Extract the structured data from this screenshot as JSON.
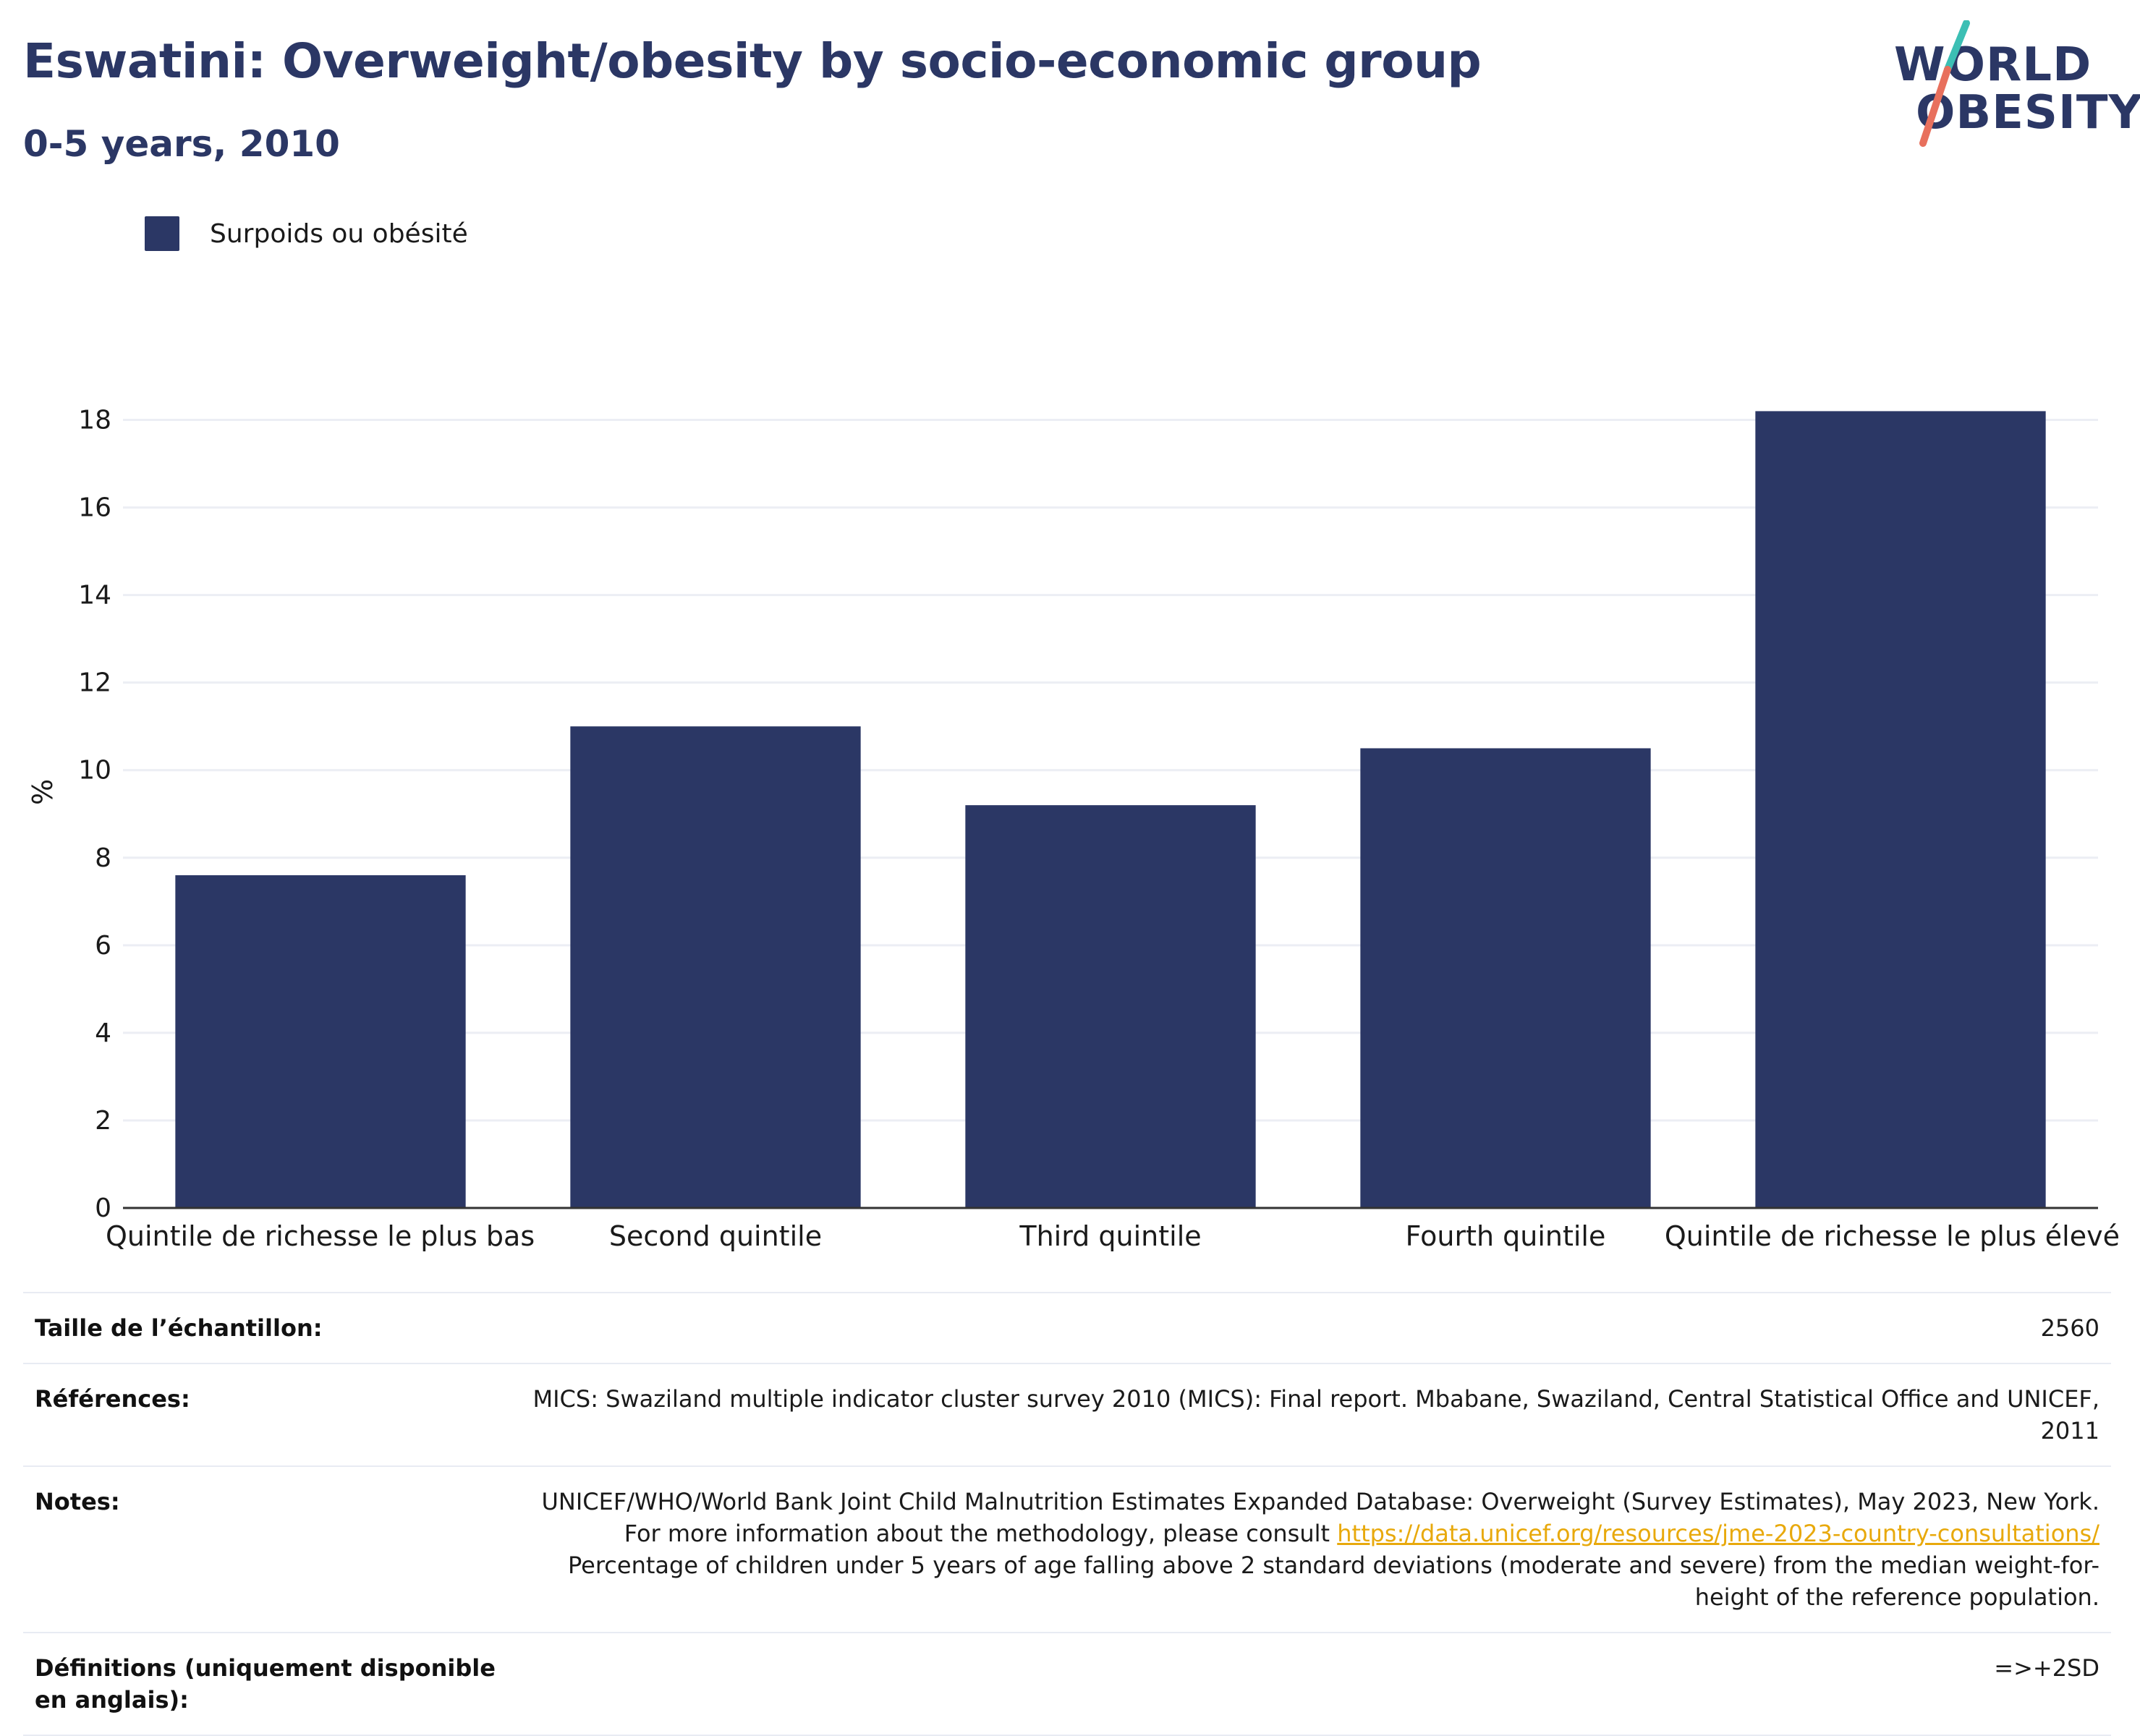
{
  "header": {
    "title": "Eswatini: Overweight/obesity by socio-economic group",
    "subtitle": "0-5 years, 2010"
  },
  "logo": {
    "line1": "WORLD",
    "line2": "OBESITY",
    "colors": {
      "text": "#2b3765",
      "slash_top": "#3cbfb4",
      "slash_bottom": "#e8705d"
    }
  },
  "colors": {
    "bar": "#2b3765",
    "grid": "#eceef4",
    "axis": "#333333",
    "link": "#e8a90c"
  },
  "chart_data": {
    "type": "bar",
    "categories": [
      "Quintile de richesse le plus bas",
      "Second quintile",
      "Third quintile",
      "Fourth quintile",
      "Quintile de richesse le plus élevé"
    ],
    "series": [
      {
        "name": "Surpoids ou obésité",
        "values": [
          7.6,
          11.0,
          9.2,
          10.5,
          18.2
        ]
      }
    ],
    "title": "",
    "xlabel": "",
    "ylabel": "%",
    "ylim": [
      0,
      19
    ],
    "yticks": [
      0,
      2,
      4,
      6,
      8,
      10,
      12,
      14,
      16,
      18
    ],
    "grid": true,
    "legend": "top-left"
  },
  "info": {
    "sample_size": {
      "label": "Taille de l’échantillon:",
      "value": "2560"
    },
    "references": {
      "label": "Références:",
      "value": "MICS: Swaziland multiple indicator cluster survey 2010 (MICS): Final report. Mbabane, Swaziland, Central Statistical Office and UNICEF, 2011"
    },
    "notes": {
      "label": "Notes:",
      "text_before": "UNICEF/WHO/World Bank Joint Child Malnutrition Estimates Expanded Database: Overweight (Survey Estimates), May 2023, New York. For more information about the methodology, please consult ",
      "link": "https://data.unicef.org/resources/jme-2023-country-consultations/",
      "text_after": " Percentage of children under 5 years of age falling above 2 standard deviations (moderate and severe) from the median weight-for-height of the reference population."
    },
    "definitions": {
      "label": "Définitions (uniquement disponible en anglais):",
      "value": "=>+2SD"
    }
  }
}
